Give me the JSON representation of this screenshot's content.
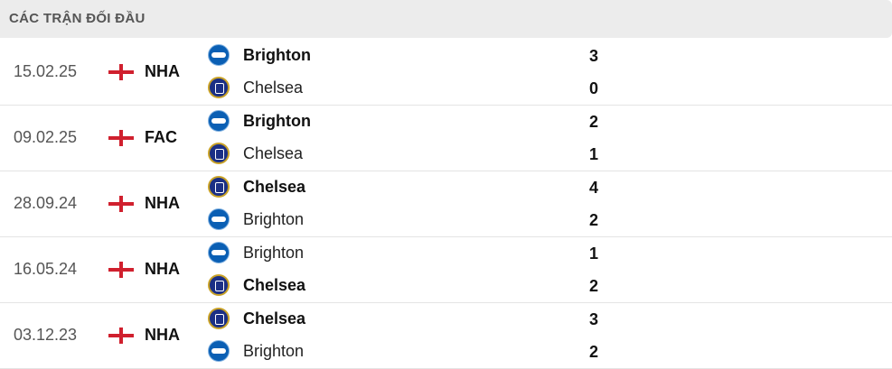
{
  "header": {
    "title": "CÁC TRẬN ĐỐI ĐẦU"
  },
  "matches": [
    {
      "date": "15.02.25",
      "competition": "NHA",
      "home": {
        "name": "Brighton",
        "logo": "brighton-crest",
        "score": "3",
        "winner": true
      },
      "away": {
        "name": "Chelsea",
        "logo": "chelsea-crest",
        "score": "0",
        "winner": false
      }
    },
    {
      "date": "09.02.25",
      "competition": "FAC",
      "home": {
        "name": "Brighton",
        "logo": "brighton-crest",
        "score": "2",
        "winner": true
      },
      "away": {
        "name": "Chelsea",
        "logo": "chelsea-crest",
        "score": "1",
        "winner": false
      }
    },
    {
      "date": "28.09.24",
      "competition": "NHA",
      "home": {
        "name": "Chelsea",
        "logo": "chelsea-crest",
        "score": "4",
        "winner": true
      },
      "away": {
        "name": "Brighton",
        "logo": "brighton-crest",
        "score": "2",
        "winner": false
      }
    },
    {
      "date": "16.05.24",
      "competition": "NHA",
      "home": {
        "name": "Brighton",
        "logo": "brighton-crest",
        "score": "1",
        "winner": false
      },
      "away": {
        "name": "Chelsea",
        "logo": "chelsea-crest",
        "score": "2",
        "winner": true
      }
    },
    {
      "date": "03.12.23",
      "competition": "NHA",
      "home": {
        "name": "Chelsea",
        "logo": "chelsea-crest",
        "score": "3",
        "winner": true
      },
      "away": {
        "name": "Brighton",
        "logo": "brighton-crest",
        "score": "2",
        "winner": false
      }
    }
  ],
  "colors": {
    "flag_red": "#d0202e",
    "header_bg": "#ececec"
  }
}
